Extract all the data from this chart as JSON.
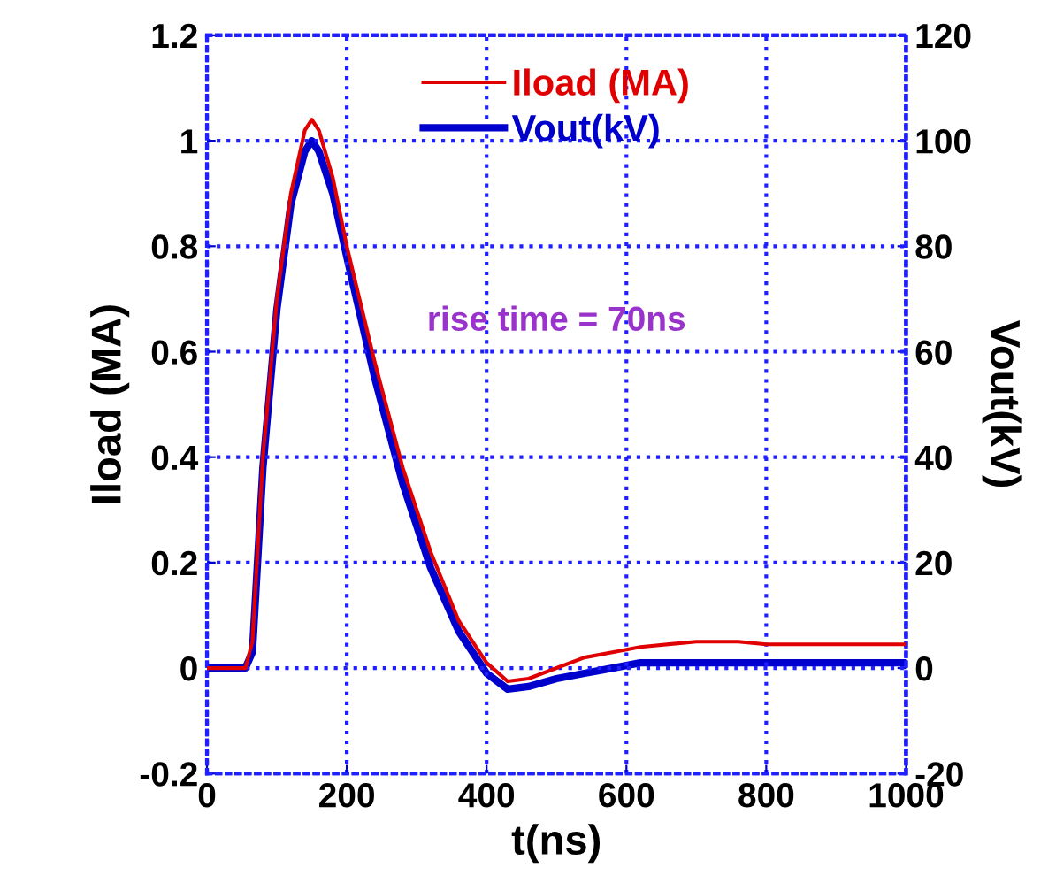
{
  "chart_data": {
    "type": "line",
    "xlabel": "t(ns)",
    "ylabel": "Iload (MA)",
    "y2label": "Vout(kV)",
    "xlim": [
      0,
      1000
    ],
    "xticks": [
      0,
      200,
      400,
      600,
      800,
      1000
    ],
    "ylim": [
      -0.2,
      1.2
    ],
    "yticks": [
      -0.2,
      0,
      0.2,
      0.4,
      0.6,
      0.8,
      1,
      1.2
    ],
    "y2lim": [
      -20,
      120
    ],
    "y2ticks": [
      -20,
      0,
      20,
      40,
      60,
      80,
      100,
      120
    ],
    "grid": true,
    "legend": "top",
    "annotations": [
      "rise time = 70ns"
    ],
    "series": [
      {
        "name": "Iload (MA)",
        "color": "#e00000",
        "x": [
          0,
          55,
          65,
          80,
          100,
          120,
          140,
          150,
          160,
          180,
          200,
          240,
          280,
          320,
          360,
          400,
          430,
          460,
          500,
          540,
          580,
          620,
          700,
          760,
          800,
          1000
        ],
        "values": [
          0,
          0,
          0.05,
          0.4,
          0.7,
          0.9,
          1.02,
          1.04,
          1.02,
          0.93,
          0.8,
          0.58,
          0.38,
          0.22,
          0.09,
          0.01,
          -0.025,
          -0.02,
          0,
          0.02,
          0.03,
          0.04,
          0.05,
          0.05,
          0.045,
          0.045
        ]
      },
      {
        "name": "Vout(kV)",
        "color": "#0000cc",
        "axis": "y2",
        "x": [
          0,
          55,
          65,
          80,
          100,
          120,
          140,
          150,
          160,
          180,
          200,
          240,
          280,
          320,
          360,
          400,
          430,
          460,
          500,
          540,
          580,
          620,
          1000
        ],
        "values": [
          0,
          0,
          3,
          38,
          68,
          88,
          98,
          100,
          98,
          90,
          78,
          55,
          35,
          19,
          7,
          -1,
          -4,
          -3.5,
          -2,
          -1,
          0,
          1,
          1
        ]
      }
    ]
  }
}
